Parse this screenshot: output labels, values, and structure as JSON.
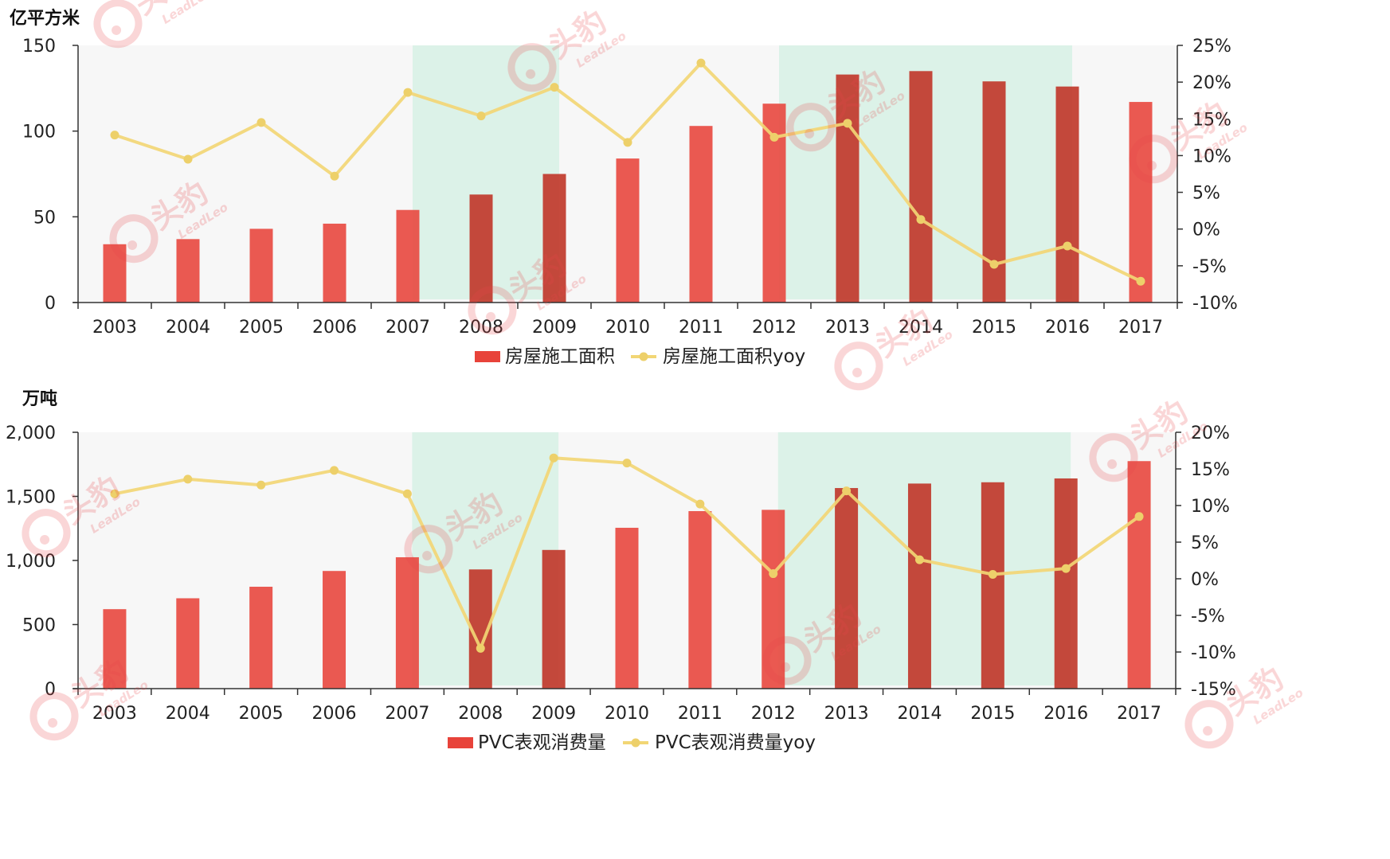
{
  "colors": {
    "bar": "#e8433a",
    "bar_dark": "#c0392b",
    "line": "#f2d675",
    "marker": "#edd06a",
    "plot_bg": "#f7f7f7",
    "highlight": "#dcf2e8",
    "watermark": "#e8474a",
    "axis": "#333333"
  },
  "watermark": {
    "text": "头豹",
    "sub": "LeadLeo",
    "icon": "leopard-logo-icon"
  },
  "chart_data": [
    {
      "type": "bar",
      "unit_label": "亿平方米",
      "categories": [
        "2003",
        "2004",
        "2005",
        "2006",
        "2007",
        "2008",
        "2009",
        "2010",
        "2011",
        "2012",
        "2013",
        "2014",
        "2015",
        "2016",
        "2017"
      ],
      "series": [
        {
          "name": "房屋施工面积",
          "type": "bar",
          "axis": "left",
          "values": [
            34,
            37,
            43,
            46,
            54,
            63,
            75,
            84,
            103,
            116,
            133,
            135,
            129,
            126,
            117
          ]
        },
        {
          "name": "房屋施工面积yoy",
          "type": "line",
          "axis": "right",
          "values": [
            12.8,
            9.5,
            14.5,
            7.2,
            18.6,
            15.4,
            19.3,
            11.8,
            22.6,
            12.5,
            14.4,
            1.3,
            -4.8,
            -2.3,
            -7.1
          ]
        }
      ],
      "left_axis": {
        "ylim": [
          0,
          150
        ],
        "ticks": [
          0,
          50,
          100,
          150
        ],
        "tick_labels": [
          "0",
          "50",
          "100",
          "150"
        ]
      },
      "right_axis": {
        "ylim": [
          -10,
          25
        ],
        "ticks": [
          -10,
          -5,
          0,
          5,
          10,
          15,
          20,
          25
        ],
        "tick_labels": [
          "-10%",
          "-5%",
          "0%",
          "5%",
          "10%",
          "15%",
          "20%",
          "25%"
        ]
      },
      "highlight_periods": [
        [
          "2007",
          "2009"
        ],
        [
          "2012",
          "2016"
        ]
      ],
      "legend_position": "bottom"
    },
    {
      "type": "bar",
      "unit_label": "万吨",
      "categories": [
        "2003",
        "2004",
        "2005",
        "2006",
        "2007",
        "2008",
        "2009",
        "2010",
        "2011",
        "2012",
        "2013",
        "2014",
        "2015",
        "2016",
        "2017"
      ],
      "series": [
        {
          "name": "PVC表观消费量",
          "type": "bar",
          "axis": "left",
          "values": [
            620,
            705,
            795,
            918,
            1025,
            930,
            1082,
            1255,
            1385,
            1395,
            1565,
            1600,
            1610,
            1640,
            1775
          ]
        },
        {
          "name": "PVC表观消费量yoy",
          "type": "line",
          "axis": "right",
          "values": [
            11.6,
            13.6,
            12.8,
            14.8,
            11.6,
            -9.5,
            16.5,
            15.8,
            10.2,
            0.7,
            12.0,
            2.6,
            0.6,
            1.4,
            8.5
          ]
        }
      ],
      "left_axis": {
        "ylim": [
          0,
          2000
        ],
        "ticks": [
          0,
          500,
          1000,
          1500,
          2000
        ],
        "tick_labels": [
          "0",
          "500",
          "1,000",
          "1,500",
          "2,000"
        ]
      },
      "right_axis": {
        "ylim": [
          -15,
          20
        ],
        "ticks": [
          -15,
          -10,
          -5,
          0,
          5,
          10,
          15,
          20
        ],
        "tick_labels": [
          "-15%",
          "-10%",
          "-5%",
          "0%",
          "5%",
          "10%",
          "15%",
          "20%"
        ]
      },
      "highlight_periods": [
        [
          "2007",
          "2009"
        ],
        [
          "2012",
          "2016"
        ]
      ],
      "legend_position": "bottom"
    }
  ]
}
